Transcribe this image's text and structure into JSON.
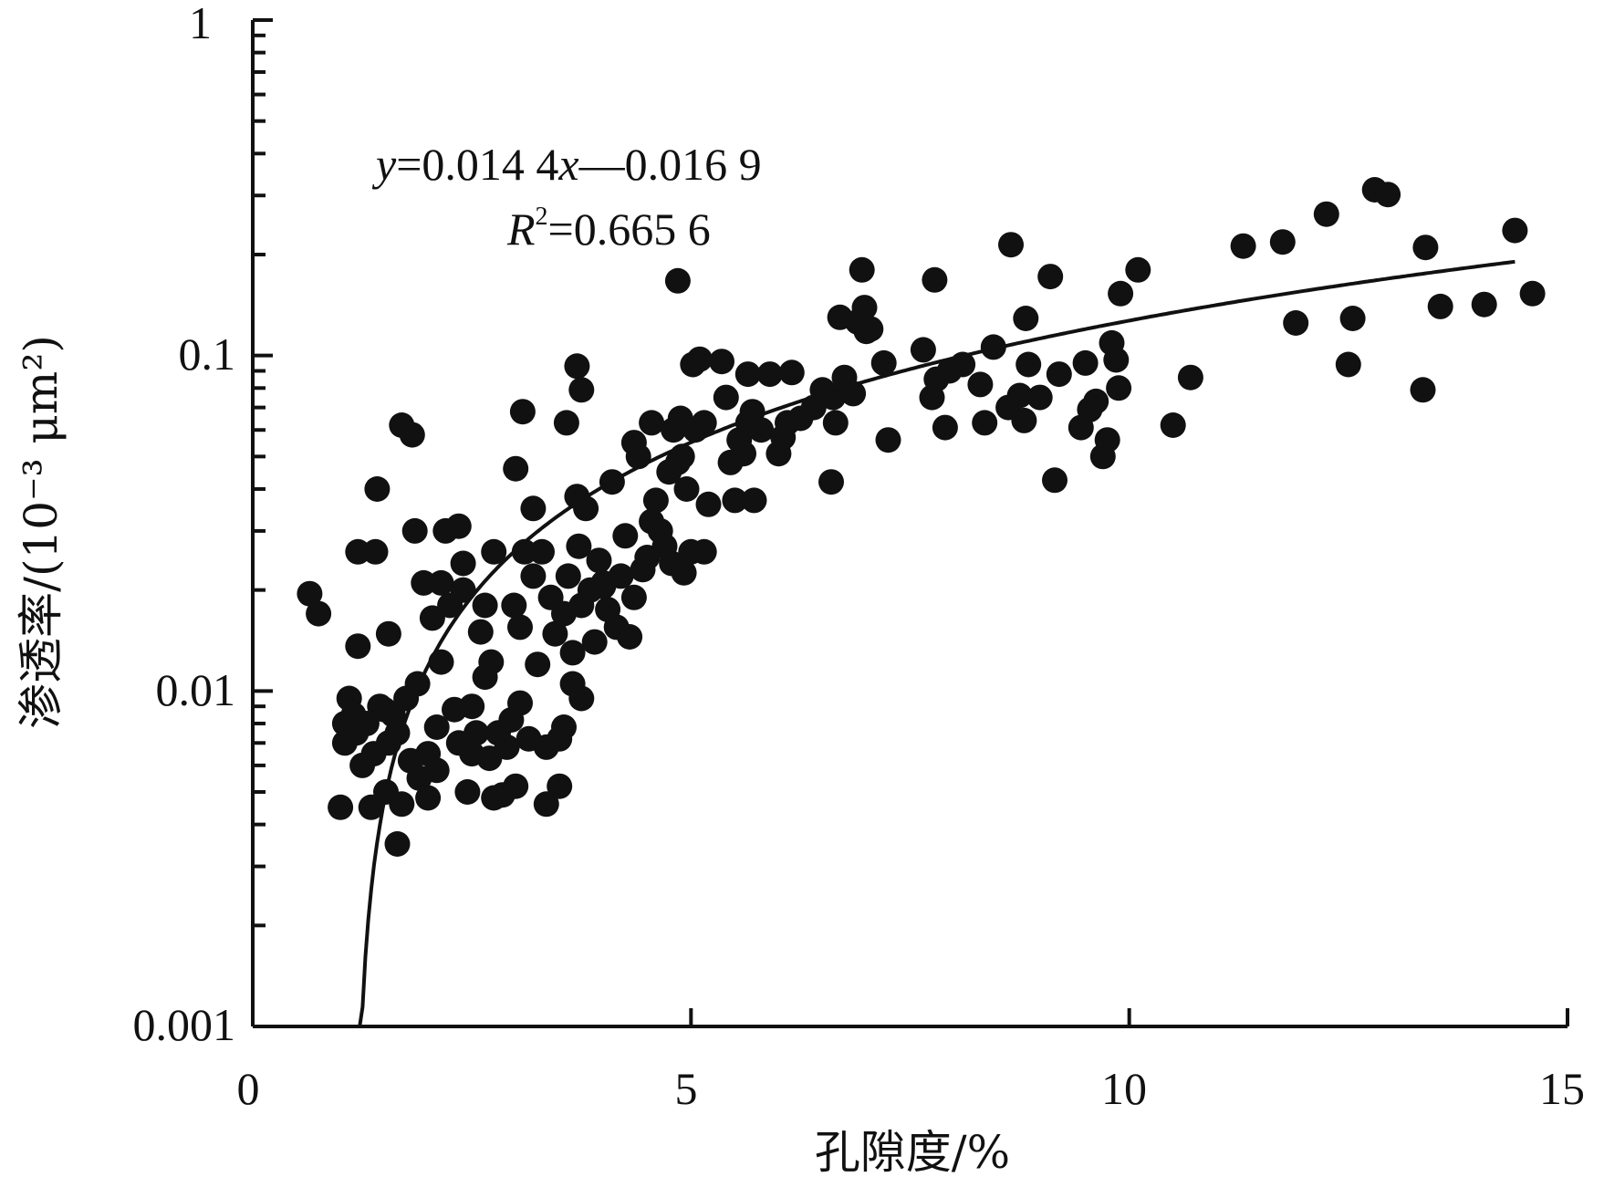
{
  "chart_data": {
    "type": "scatter",
    "title": "",
    "xlabel": "孔隙度/%",
    "ylabel": "渗透率/(10⁻³ μm²)",
    "xlim": [
      0,
      15
    ],
    "ylim": [
      0.001,
      1
    ],
    "yscale": "log",
    "grid": false,
    "legend": "none",
    "x_ticks": [
      "0",
      "5",
      "10",
      "15"
    ],
    "y_ticks": [
      "0.001",
      "0.01",
      "0.1",
      "1"
    ],
    "equation": {
      "y_var": "y",
      "rhs": "=0.014 4",
      "x_var": "x",
      "tail": "—0.016 9",
      "r_var": "R",
      "r_exp": "2",
      "r_value": "=0.665 6"
    },
    "fit": {
      "slope": 0.0144,
      "intercept": -0.0169,
      "x_range": [
        1.22,
        14.4
      ]
    },
    "colors": {
      "points": "#111111",
      "line": "#111111",
      "axis": "#111111"
    },
    "points": [
      [
        0.65,
        0.0195
      ],
      [
        0.75,
        0.017
      ],
      [
        1.0,
        0.0045
      ],
      [
        1.05,
        0.007
      ],
      [
        1.05,
        0.008
      ],
      [
        1.1,
        0.0095
      ],
      [
        1.15,
        0.0085
      ],
      [
        1.18,
        0.0075
      ],
      [
        1.2,
        0.0136
      ],
      [
        1.2,
        0.026
      ],
      [
        1.25,
        0.006
      ],
      [
        1.3,
        0.008
      ],
      [
        1.35,
        0.0045
      ],
      [
        1.38,
        0.0065
      ],
      [
        1.4,
        0.026
      ],
      [
        1.42,
        0.04
      ],
      [
        1.45,
        0.009
      ],
      [
        1.5,
        0.0088
      ],
      [
        1.52,
        0.005
      ],
      [
        1.55,
        0.007
      ],
      [
        1.55,
        0.0148
      ],
      [
        1.6,
        0.0085
      ],
      [
        1.65,
        0.0075
      ],
      [
        1.65,
        0.0035
      ],
      [
        1.7,
        0.0046
      ],
      [
        1.7,
        0.062
      ],
      [
        1.75,
        0.0095
      ],
      [
        1.8,
        0.0062
      ],
      [
        1.82,
        0.058
      ],
      [
        1.85,
        0.03
      ],
      [
        1.88,
        0.0105
      ],
      [
        1.9,
        0.0055
      ],
      [
        1.95,
        0.021
      ],
      [
        2.0,
        0.0065
      ],
      [
        2.0,
        0.0048
      ],
      [
        2.05,
        0.0165
      ],
      [
        2.1,
        0.0078
      ],
      [
        2.1,
        0.0058
      ],
      [
        2.15,
        0.021
      ],
      [
        2.15,
        0.0122
      ],
      [
        2.2,
        0.03
      ],
      [
        2.25,
        0.018
      ],
      [
        2.3,
        0.0088
      ],
      [
        2.35,
        0.007
      ],
      [
        2.35,
        0.031
      ],
      [
        2.4,
        0.02
      ],
      [
        2.4,
        0.024
      ],
      [
        2.45,
        0.005
      ],
      [
        2.5,
        0.009
      ],
      [
        2.5,
        0.0065
      ],
      [
        2.55,
        0.0075
      ],
      [
        2.6,
        0.015
      ],
      [
        2.65,
        0.011
      ],
      [
        2.65,
        0.018
      ],
      [
        2.7,
        0.0063
      ],
      [
        2.72,
        0.0122
      ],
      [
        2.75,
        0.026
      ],
      [
        2.75,
        0.0048
      ],
      [
        2.8,
        0.0075
      ],
      [
        2.85,
        0.0049
      ],
      [
        2.9,
        0.0068
      ],
      [
        2.95,
        0.0082
      ],
      [
        2.98,
        0.018
      ],
      [
        3.0,
        0.0052
      ],
      [
        3.0,
        0.046
      ],
      [
        3.05,
        0.0155
      ],
      [
        3.05,
        0.0092
      ],
      [
        3.08,
        0.068
      ],
      [
        3.1,
        0.026
      ],
      [
        3.15,
        0.0072
      ],
      [
        3.2,
        0.035
      ],
      [
        3.2,
        0.022
      ],
      [
        3.25,
        0.012
      ],
      [
        3.3,
        0.026
      ],
      [
        3.35,
        0.0068
      ],
      [
        3.35,
        0.0046
      ],
      [
        3.4,
        0.019
      ],
      [
        3.45,
        0.0148
      ],
      [
        3.5,
        0.0072
      ],
      [
        3.5,
        0.0052
      ],
      [
        3.55,
        0.0078
      ],
      [
        3.55,
        0.017
      ],
      [
        3.58,
        0.063
      ],
      [
        3.6,
        0.022
      ],
      [
        3.65,
        0.0105
      ],
      [
        3.65,
        0.013
      ],
      [
        3.7,
        0.038
      ],
      [
        3.7,
        0.093
      ],
      [
        3.72,
        0.027
      ],
      [
        3.75,
        0.018
      ],
      [
        3.75,
        0.0095
      ],
      [
        3.75,
        0.079
      ],
      [
        3.8,
        0.035
      ],
      [
        3.85,
        0.02
      ],
      [
        3.9,
        0.014
      ],
      [
        3.95,
        0.0245
      ],
      [
        4.0,
        0.021
      ],
      [
        4.0,
        0.0205
      ],
      [
        4.05,
        0.0175
      ],
      [
        4.1,
        0.042
      ],
      [
        4.15,
        0.0155
      ],
      [
        4.2,
        0.022
      ],
      [
        4.25,
        0.029
      ],
      [
        4.3,
        0.0145
      ],
      [
        4.35,
        0.019
      ],
      [
        4.35,
        0.055
      ],
      [
        4.4,
        0.05
      ],
      [
        4.45,
        0.023
      ],
      [
        4.5,
        0.025
      ],
      [
        4.55,
        0.032
      ],
      [
        4.55,
        0.063
      ],
      [
        4.6,
        0.037
      ],
      [
        4.65,
        0.03
      ],
      [
        4.7,
        0.027
      ],
      [
        4.75,
        0.045
      ],
      [
        4.78,
        0.024
      ],
      [
        4.8,
        0.06
      ],
      [
        4.85,
        0.048
      ],
      [
        4.85,
        0.167
      ],
      [
        4.88,
        0.065
      ],
      [
        4.9,
        0.05
      ],
      [
        4.92,
        0.0225
      ],
      [
        4.95,
        0.04
      ],
      [
        5.0,
        0.026
      ],
      [
        5.02,
        0.094
      ],
      [
        5.05,
        0.06
      ],
      [
        5.1,
        0.0975
      ],
      [
        5.15,
        0.063
      ],
      [
        5.15,
        0.026
      ],
      [
        5.2,
        0.036
      ],
      [
        5.35,
        0.096
      ],
      [
        5.4,
        0.075
      ],
      [
        5.45,
        0.048
      ],
      [
        5.5,
        0.037
      ],
      [
        5.55,
        0.056
      ],
      [
        5.6,
        0.051
      ],
      [
        5.65,
        0.063
      ],
      [
        5.65,
        0.088
      ],
      [
        5.7,
        0.068
      ],
      [
        5.72,
        0.037
      ],
      [
        5.8,
        0.06
      ],
      [
        5.9,
        0.088
      ],
      [
        6.0,
        0.051
      ],
      [
        6.05,
        0.057
      ],
      [
        6.1,
        0.063
      ],
      [
        6.15,
        0.089
      ],
      [
        6.25,
        0.065
      ],
      [
        6.4,
        0.07
      ],
      [
        6.5,
        0.079
      ],
      [
        6.6,
        0.042
      ],
      [
        6.62,
        0.075
      ],
      [
        6.65,
        0.063
      ],
      [
        6.7,
        0.13
      ],
      [
        6.75,
        0.086
      ],
      [
        6.85,
        0.077
      ],
      [
        6.9,
        0.126
      ],
      [
        6.95,
        0.18
      ],
      [
        6.98,
        0.139
      ],
      [
        7.0,
        0.118
      ],
      [
        7.05,
        0.12
      ],
      [
        7.2,
        0.095
      ],
      [
        7.25,
        0.056
      ],
      [
        7.65,
        0.104
      ],
      [
        7.75,
        0.075
      ],
      [
        7.78,
        0.168
      ],
      [
        7.8,
        0.085
      ],
      [
        7.9,
        0.061
      ],
      [
        7.95,
        0.09
      ],
      [
        8.1,
        0.094
      ],
      [
        8.3,
        0.082
      ],
      [
        8.35,
        0.063
      ],
      [
        8.45,
        0.106
      ],
      [
        8.62,
        0.07
      ],
      [
        8.65,
        0.214
      ],
      [
        8.75,
        0.076
      ],
      [
        8.8,
        0.064
      ],
      [
        8.82,
        0.129
      ],
      [
        8.85,
        0.094
      ],
      [
        8.98,
        0.075
      ],
      [
        9.1,
        0.172
      ],
      [
        9.15,
        0.0425
      ],
      [
        9.2,
        0.088
      ],
      [
        9.45,
        0.061
      ],
      [
        9.5,
        0.095
      ],
      [
        9.55,
        0.069
      ],
      [
        9.62,
        0.073
      ],
      [
        9.7,
        0.05
      ],
      [
        9.75,
        0.056
      ],
      [
        9.8,
        0.109
      ],
      [
        9.85,
        0.097
      ],
      [
        9.88,
        0.08
      ],
      [
        9.9,
        0.153
      ],
      [
        10.1,
        0.18
      ],
      [
        10.5,
        0.062
      ],
      [
        10.7,
        0.086
      ],
      [
        11.3,
        0.212
      ],
      [
        11.75,
        0.218
      ],
      [
        11.9,
        0.125
      ],
      [
        12.25,
        0.264
      ],
      [
        12.5,
        0.094
      ],
      [
        12.55,
        0.129
      ],
      [
        12.8,
        0.312
      ],
      [
        12.95,
        0.302
      ],
      [
        13.35,
        0.079
      ],
      [
        13.38,
        0.21
      ],
      [
        13.55,
        0.14
      ],
      [
        14.05,
        0.142
      ],
      [
        14.6,
        0.153
      ],
      [
        14.4,
        0.236
      ]
    ]
  }
}
